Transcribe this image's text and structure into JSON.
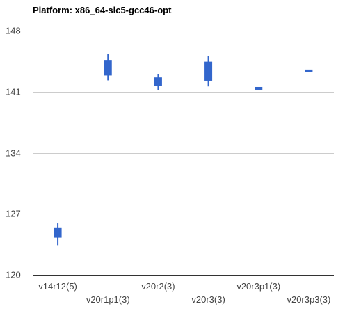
{
  "chart_data": {
    "type": "candlestick",
    "title": "Platform: x86_64-slc5-gcc46-opt",
    "xlabel": "",
    "ylabel": "",
    "ylim": [
      120,
      148
    ],
    "yticks": [
      120,
      127,
      134,
      141,
      148
    ],
    "grid": true,
    "legend": "none",
    "color": "#3366cc",
    "categories": [
      "v14r12(5)",
      "v20r1p1(3)",
      "v20r2(3)",
      "v20r3(3)",
      "v20r3p1(3)",
      "v20r3p3(3)"
    ],
    "series": [
      {
        "low": [
          123.4,
          142.3,
          141.2,
          141.6,
          141.3,
          143.3
        ],
        "open": [
          124.3,
          142.9,
          141.7,
          142.3,
          141.3,
          143.3
        ],
        "close": [
          125.4,
          144.6,
          142.6,
          144.4,
          141.5,
          143.5
        ],
        "high": [
          125.9,
          145.3,
          143.0,
          145.1,
          141.5,
          143.5
        ]
      }
    ]
  }
}
